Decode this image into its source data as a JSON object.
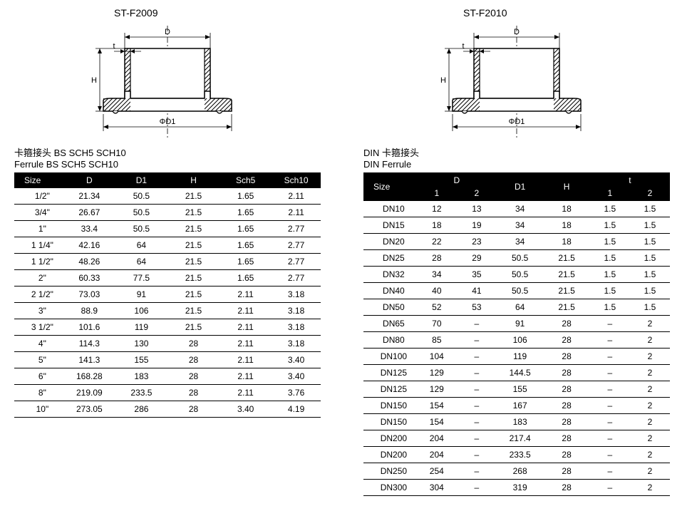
{
  "left": {
    "model": "ST-F2009",
    "title_cn": "卡箍接头 BS SCH5 SCH10",
    "title_en": "Ferrule BS SCH5 SCH10",
    "diagram_labels": {
      "D": "D",
      "D1": "ΦD1",
      "H": "H",
      "t": "t"
    },
    "columns": [
      "Size",
      "D",
      "D1",
      "H",
      "Sch5",
      "Sch10"
    ],
    "rows": [
      [
        "1/2\"",
        "21.34",
        "50.5",
        "21.5",
        "1.65",
        "2.11"
      ],
      [
        "3/4\"",
        "26.67",
        "50.5",
        "21.5",
        "1.65",
        "2.11"
      ],
      [
        "1\"",
        "33.4",
        "50.5",
        "21.5",
        "1.65",
        "2.77"
      ],
      [
        "1 1/4\"",
        "42.16",
        "64",
        "21.5",
        "1.65",
        "2.77"
      ],
      [
        "1 1/2\"",
        "48.26",
        "64",
        "21.5",
        "1.65",
        "2.77"
      ],
      [
        "2\"",
        "60.33",
        "77.5",
        "21.5",
        "1.65",
        "2.77"
      ],
      [
        "2 1/2\"",
        "73.03",
        "91",
        "21.5",
        "2.11",
        "3.18"
      ],
      [
        "3\"",
        "88.9",
        "106",
        "21.5",
        "2.11",
        "3.18"
      ],
      [
        "3 1/2\"",
        "101.6",
        "119",
        "21.5",
        "2.11",
        "3.18"
      ],
      [
        "4\"",
        "114.3",
        "130",
        "28",
        "2.11",
        "3.18"
      ],
      [
        "5\"",
        "141.3",
        "155",
        "28",
        "2.11",
        "3.40"
      ],
      [
        "6\"",
        "168.28",
        "183",
        "28",
        "2.11",
        "3.40"
      ],
      [
        "8\"",
        "219.09",
        "233.5",
        "28",
        "2.11",
        "3.76"
      ],
      [
        "10\"",
        "273.05",
        "286",
        "28",
        "3.40",
        "4.19"
      ]
    ]
  },
  "right": {
    "model": "ST-F2010",
    "title_cn": "DIN 卡箍接头",
    "title_en": "DIN Ferrule",
    "diagram_labels": {
      "D": "D",
      "D1": "ΦD1",
      "H": "H",
      "t": "t"
    },
    "columns_top": [
      "Size",
      "D",
      "D1",
      "H",
      "t"
    ],
    "columns_bottom": [
      "",
      "1",
      "2",
      "",
      "",
      "1",
      "2"
    ],
    "rows": [
      [
        "DN10",
        "12",
        "13",
        "34",
        "18",
        "1.5",
        "1.5"
      ],
      [
        "DN15",
        "18",
        "19",
        "34",
        "18",
        "1.5",
        "1.5"
      ],
      [
        "DN20",
        "22",
        "23",
        "34",
        "18",
        "1.5",
        "1.5"
      ],
      [
        "DN25",
        "28",
        "29",
        "50.5",
        "21.5",
        "1.5",
        "1.5"
      ],
      [
        "DN32",
        "34",
        "35",
        "50.5",
        "21.5",
        "1.5",
        "1.5"
      ],
      [
        "DN40",
        "40",
        "41",
        "50.5",
        "21.5",
        "1.5",
        "1.5"
      ],
      [
        "DN50",
        "52",
        "53",
        "64",
        "21.5",
        "1.5",
        "1.5"
      ],
      [
        "DN65",
        "70",
        "–",
        "91",
        "28",
        "–",
        "2"
      ],
      [
        "DN80",
        "85",
        "–",
        "106",
        "28",
        "–",
        "2"
      ],
      [
        "DN100",
        "104",
        "–",
        "119",
        "28",
        "–",
        "2"
      ],
      [
        "DN125",
        "129",
        "–",
        "144.5",
        "28",
        "–",
        "2"
      ],
      [
        "DN125",
        "129",
        "–",
        "155",
        "28",
        "–",
        "2"
      ],
      [
        "DN150",
        "154",
        "–",
        "167",
        "28",
        "–",
        "2"
      ],
      [
        "DN150",
        "154",
        "–",
        "183",
        "28",
        "–",
        "2"
      ],
      [
        "DN200",
        "204",
        "–",
        "217.4",
        "28",
        "–",
        "2"
      ],
      [
        "DN200",
        "204",
        "–",
        "233.5",
        "28",
        "–",
        "2"
      ],
      [
        "DN250",
        "254",
        "–",
        "268",
        "28",
        "–",
        "2"
      ],
      [
        "DN300",
        "304",
        "–",
        "319",
        "28",
        "–",
        "2"
      ]
    ]
  },
  "style": {
    "header_bg": "#000000",
    "header_fg": "#ffffff",
    "row_border": "#000000",
    "text_color": "#000000",
    "font_size_table": 12,
    "font_size_title": 13,
    "diagram_stroke": "#000000",
    "diagram_fill": "#ffffff",
    "hatch_stroke": "#000000"
  }
}
